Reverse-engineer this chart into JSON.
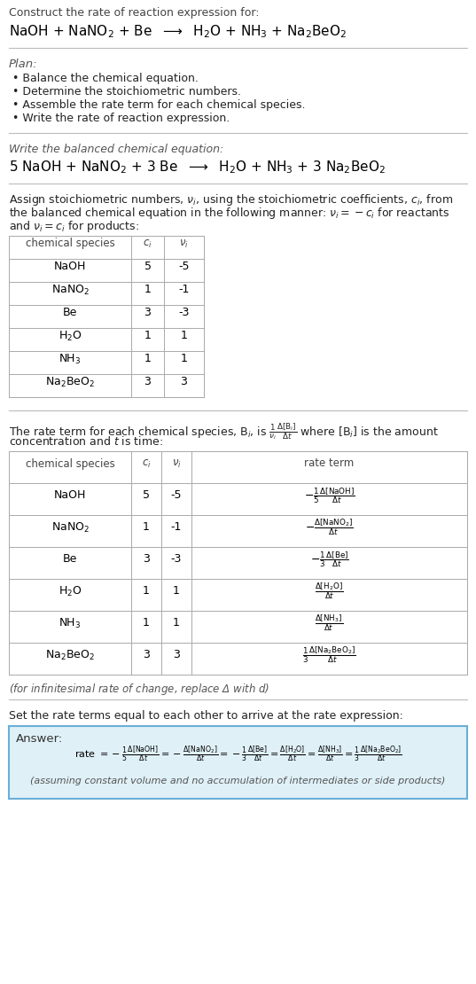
{
  "bg_color": "#ffffff",
  "text_color": "#000000",
  "title_line1": "Construct the rate of reaction expression for:",
  "plan_header": "Plan:",
  "plan_items": [
    "• Balance the chemical equation.",
    "• Determine the stoichiometric numbers.",
    "• Assemble the rate term for each chemical species.",
    "• Write the rate of reaction expression."
  ],
  "balanced_header": "Write the balanced chemical equation:",
  "stoich_intro_lines": [
    "Assign stoichiometric numbers, $\\nu_i$, using the stoichiometric coefficients, $c_i$, from",
    "the balanced chemical equation in the following manner: $\\nu_i = -c_i$ for reactants",
    "and $\\nu_i = c_i$ for products:"
  ],
  "table1_headers": [
    "chemical species",
    "$c_i$",
    "$\\nu_i$"
  ],
  "table1_species": [
    "NaOH",
    "NaNO$_2$",
    "Be",
    "H$_2$O",
    "NH$_3$",
    "Na$_2$BeO$_2$"
  ],
  "table1_ci": [
    "5",
    "1",
    "3",
    "1",
    "1",
    "3"
  ],
  "table1_vi": [
    "-5",
    "-1",
    "-3",
    "1",
    "1",
    "3"
  ],
  "rate_intro_lines": [
    "The rate term for each chemical species, B$_i$, is $\\frac{1}{\\nu_i}\\frac{\\Delta[\\mathrm{B}_i]}{\\Delta t}$ where [B$_i$] is the amount",
    "concentration and $t$ is time:"
  ],
  "table2_headers": [
    "chemical species",
    "$c_i$",
    "$\\nu_i$",
    "rate term"
  ],
  "table2_species": [
    "NaOH",
    "NaNO$_2$",
    "Be",
    "H$_2$O",
    "NH$_3$",
    "Na$_2$BeO$_2$"
  ],
  "table2_ci": [
    "5",
    "1",
    "3",
    "1",
    "1",
    "3"
  ],
  "table2_vi": [
    "-5",
    "-1",
    "-3",
    "1",
    "1",
    "3"
  ],
  "infinitesimal_note": "(for infinitesimal rate of change, replace Δ with $d$)",
  "set_rate_header": "Set the rate terms equal to each other to arrive at the rate expression:",
  "answer_label": "Answer:",
  "answer_box_color": "#dff0f7",
  "answer_border_color": "#6aaed6",
  "assuming_note": "(assuming constant volume and no accumulation of intermediates or side products)"
}
